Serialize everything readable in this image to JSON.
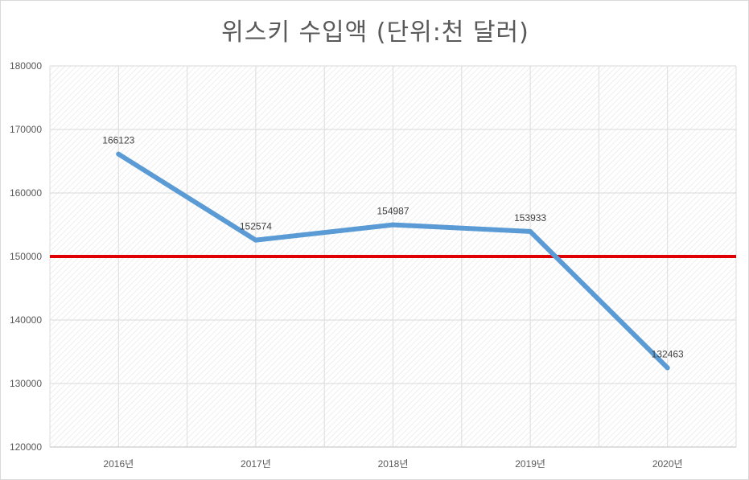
{
  "chart_data": {
    "type": "line",
    "title": "위스키 수입액 (단위:천 달러)",
    "categories": [
      "2016년",
      "2017년",
      "2018년",
      "2019년",
      "2020년"
    ],
    "series": [
      {
        "values": [
          166123,
          152574,
          154987,
          153933,
          132463
        ],
        "color": "#5b9bd5"
      }
    ],
    "reference_line": {
      "value": 150000,
      "color": "#e00000"
    },
    "ylim": [
      120000,
      180000
    ],
    "yticks": [
      120000,
      130000,
      140000,
      150000,
      160000,
      170000,
      180000
    ],
    "data_labels": [
      "166123",
      "152574",
      "154987",
      "153933",
      "132463"
    ],
    "grid": true,
    "legend": false
  }
}
